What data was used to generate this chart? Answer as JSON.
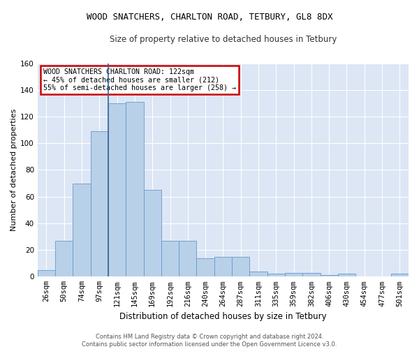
{
  "title": "WOOD SNATCHERS, CHARLTON ROAD, TETBURY, GL8 8DX",
  "subtitle": "Size of property relative to detached houses in Tetbury",
  "xlabel": "Distribution of detached houses by size in Tetbury",
  "ylabel": "Number of detached properties",
  "bar_labels": [
    "26sqm",
    "50sqm",
    "74sqm",
    "97sqm",
    "121sqm",
    "145sqm",
    "169sqm",
    "192sqm",
    "216sqm",
    "240sqm",
    "264sqm",
    "287sqm",
    "311sqm",
    "335sqm",
    "359sqm",
    "382sqm",
    "406sqm",
    "430sqm",
    "454sqm",
    "477sqm",
    "501sqm"
  ],
  "bar_values": [
    5,
    27,
    70,
    109,
    130,
    131,
    65,
    27,
    27,
    14,
    15,
    15,
    4,
    2,
    3,
    3,
    1,
    2,
    0,
    0,
    2
  ],
  "bar_color": "#b8d0e8",
  "bar_edge_color": "#6699cc",
  "vline_color": "#336699",
  "annotation_text": "WOOD SNATCHERS CHARLTON ROAD: 122sqm\n← 45% of detached houses are smaller (212)\n55% of semi-detached houses are larger (258) →",
  "annotation_box_color": "#ffffff",
  "annotation_border_color": "#cc0000",
  "bg_color": "#dce6f5",
  "grid_color": "#ffffff",
  "footer": "Contains HM Land Registry data © Crown copyright and database right 2024.\nContains public sector information licensed under the Open Government Licence v3.0.",
  "ylim": [
    0,
    160
  ],
  "yticks": [
    0,
    20,
    40,
    60,
    80,
    100,
    120,
    140,
    160
  ]
}
